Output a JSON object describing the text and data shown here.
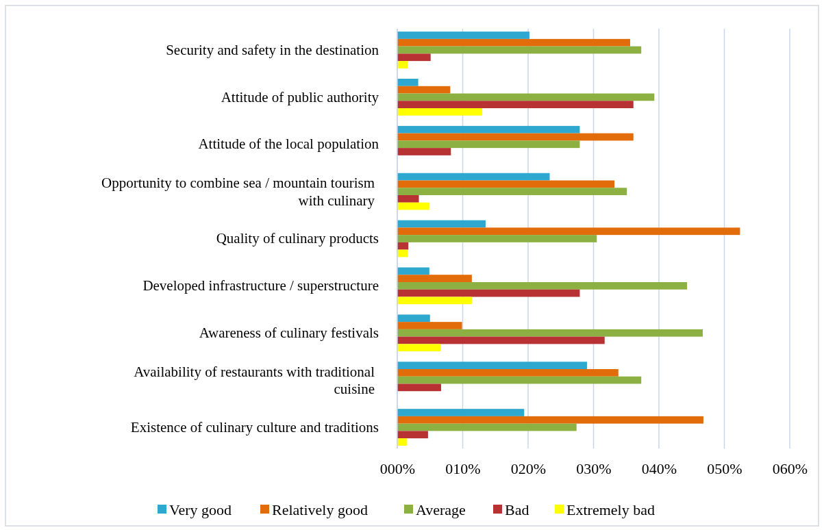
{
  "chart_data": {
    "type": "bar",
    "orientation": "horizontal",
    "categories": [
      "Security and safety in the destination",
      "Attitude of public authority",
      "Attitude of the local population",
      "Opportunity to combine sea / mountain tourism with culinary",
      "Quality of culinary products",
      "Developed infrastructure / superstructure",
      "Awareness of culinary festivals",
      "Availability of restaurants with traditional cuisine",
      "Existence of culinary culture and traditions"
    ],
    "series": [
      {
        "name": "Very good",
        "color": "#2ea8cf",
        "values": [
          20.2,
          3.2,
          27.9,
          23.3,
          13.5,
          4.9,
          5.0,
          29.0,
          19.4
        ]
      },
      {
        "name": "Relatively good",
        "color": "#e36c0a",
        "values": [
          35.6,
          8.1,
          36.1,
          33.2,
          52.4,
          11.4,
          9.9,
          33.8,
          46.8
        ]
      },
      {
        "name": "Average",
        "color": "#8db043",
        "values": [
          37.3,
          39.3,
          27.9,
          35.1,
          30.5,
          44.3,
          46.7,
          37.3,
          27.4
        ]
      },
      {
        "name": "Bad",
        "color": "#b83233",
        "values": [
          5.1,
          36.1,
          8.2,
          3.3,
          1.7,
          27.9,
          31.7,
          6.7,
          4.7
        ]
      },
      {
        "name": "Extremely bad",
        "color": "#ffff00",
        "values": [
          1.6,
          13.0,
          null,
          4.9,
          1.6,
          11.4,
          6.6,
          null,
          1.5
        ]
      }
    ],
    "xlim": [
      0,
      60
    ],
    "xticks": [
      {
        "value": 0,
        "label": "000%"
      },
      {
        "value": 10,
        "label": "010%"
      },
      {
        "value": 20,
        "label": "020%"
      },
      {
        "value": 30,
        "label": "030%"
      },
      {
        "value": 40,
        "label": "040%"
      },
      {
        "value": 50,
        "label": "050%"
      },
      {
        "value": 60,
        "label": "060%"
      }
    ],
    "grid": "x",
    "legend": "bottom"
  }
}
